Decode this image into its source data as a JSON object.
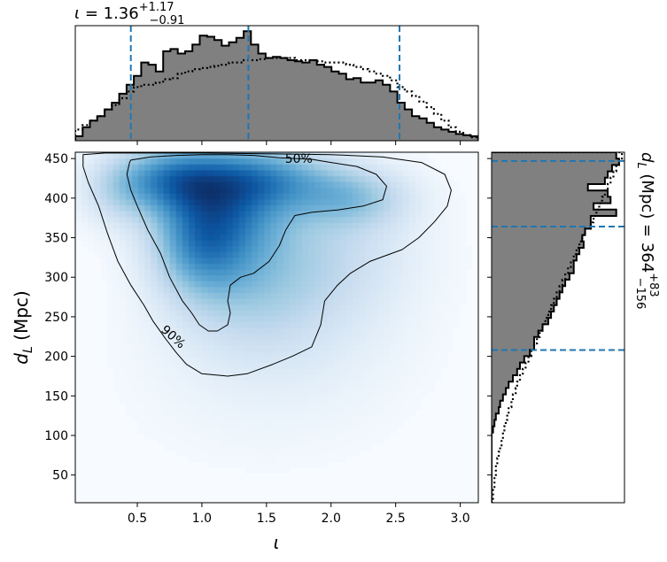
{
  "chart_data": {
    "type": "heatmap",
    "title": "",
    "colors": {
      "cmap_low": "#f7fbff",
      "cmap_high": "#08306b",
      "hist_fill": "#808080",
      "quantile_line": "#1f77b4"
    },
    "joint": {
      "xlabel": "ι",
      "ylabel": "d_L (Mpc)",
      "xlim": [
        0.02,
        3.14
      ],
      "ylim": [
        15,
        458
      ],
      "xticks": [
        0.5,
        1.0,
        1.5,
        2.0,
        2.5,
        3.0
      ],
      "xtick_labels": [
        "0.5",
        "1.0",
        "1.5",
        "2.0",
        "2.5",
        "3.0"
      ],
      "yticks": [
        50,
        100,
        150,
        200,
        250,
        300,
        350,
        400,
        450
      ],
      "ytick_labels": [
        "50",
        "100",
        "150",
        "200",
        "250",
        "300",
        "350",
        "400",
        "450"
      ],
      "density_blobs": [
        {
          "x": 0.75,
          "y": 425,
          "sx": 0.28,
          "sy": 28,
          "w": 0.85
        },
        {
          "x": 1.2,
          "y": 400,
          "sx": 0.35,
          "sy": 45,
          "w": 0.9
        },
        {
          "x": 1.0,
          "y": 345,
          "sx": 0.25,
          "sy": 45,
          "w": 0.8
        },
        {
          "x": 1.5,
          "y": 425,
          "sx": 0.4,
          "sy": 25,
          "w": 0.65
        },
        {
          "x": 2.15,
          "y": 400,
          "sx": 0.3,
          "sy": 25,
          "w": 0.5
        },
        {
          "x": 1.35,
          "y": 300,
          "sx": 0.4,
          "sy": 55,
          "w": 0.45
        },
        {
          "x": 2.0,
          "y": 330,
          "sx": 0.45,
          "sy": 60,
          "w": 0.3
        },
        {
          "x": 0.35,
          "y": 410,
          "sx": 0.2,
          "sy": 30,
          "w": 0.3
        },
        {
          "x": 1.6,
          "y": 220,
          "sx": 0.6,
          "sy": 50,
          "w": 0.12
        },
        {
          "x": 1.5,
          "y": 140,
          "sx": 0.7,
          "sy": 60,
          "w": 0.05
        }
      ],
      "contours": [
        {
          "label": "50%",
          "label_at": [
            1.75,
            450
          ],
          "points": [
            [
              0.45,
              448
            ],
            [
              0.6,
              452
            ],
            [
              0.8,
              454
            ],
            [
              1.0,
              455
            ],
            [
              1.2,
              455
            ],
            [
              1.4,
              454
            ],
            [
              1.6,
              451
            ],
            [
              1.75,
              450
            ],
            [
              1.85,
              449
            ],
            [
              2.0,
              445
            ],
            [
              2.2,
              440
            ],
            [
              2.35,
              430
            ],
            [
              2.43,
              415
            ],
            [
              2.4,
              398
            ],
            [
              2.25,
              390
            ],
            [
              2.05,
              385
            ],
            [
              1.85,
              382
            ],
            [
              1.72,
              378
            ],
            [
              1.65,
              360
            ],
            [
              1.6,
              340
            ],
            [
              1.52,
              320
            ],
            [
              1.4,
              305
            ],
            [
              1.3,
              300
            ],
            [
              1.22,
              290
            ],
            [
              1.2,
              270
            ],
            [
              1.22,
              255
            ],
            [
              1.2,
              240
            ],
            [
              1.12,
              232
            ],
            [
              1.05,
              232
            ],
            [
              0.98,
              240
            ],
            [
              0.92,
              255
            ],
            [
              0.85,
              270
            ],
            [
              0.75,
              300
            ],
            [
              0.68,
              330
            ],
            [
              0.58,
              360
            ],
            [
              0.5,
              390
            ],
            [
              0.45,
              410
            ],
            [
              0.42,
              430
            ],
            [
              0.44,
              445
            ],
            [
              0.45,
              448
            ]
          ]
        },
        {
          "label": "90%",
          "label_at": [
            0.78,
            225
          ],
          "points": [
            [
              0.08,
              455
            ],
            [
              0.25,
              457
            ],
            [
              0.6,
              457
            ],
            [
              1.0,
              457
            ],
            [
              1.5,
              456
            ],
            [
              2.0,
              455
            ],
            [
              2.4,
              452
            ],
            [
              2.7,
              445
            ],
            [
              2.88,
              430
            ],
            [
              2.93,
              410
            ],
            [
              2.9,
              390
            ],
            [
              2.8,
              370
            ],
            [
              2.68,
              350
            ],
            [
              2.55,
              335
            ],
            [
              2.3,
              320
            ],
            [
              2.15,
              305
            ],
            [
              2.05,
              290
            ],
            [
              1.95,
              270
            ],
            [
              1.92,
              240
            ],
            [
              1.85,
              212
            ],
            [
              1.7,
              200
            ],
            [
              1.55,
              190
            ],
            [
              1.35,
              178
            ],
            [
              1.2,
              175
            ],
            [
              1.0,
              178
            ],
            [
              0.88,
              190
            ],
            [
              0.8,
              205
            ],
            [
              0.72,
              222
            ],
            [
              0.62,
              245
            ],
            [
              0.55,
              265
            ],
            [
              0.45,
              290
            ],
            [
              0.35,
              320
            ],
            [
              0.27,
              355
            ],
            [
              0.2,
              390
            ],
            [
              0.12,
              420
            ],
            [
              0.08,
              440
            ],
            [
              0.08,
              455
            ]
          ]
        }
      ]
    },
    "top_histogram": {
      "label": "ι = 1.36^{+1.17}_{−0.91}",
      "median": 1.36,
      "plus": "+1.17",
      "minus": "−0.91",
      "quantiles": [
        0.45,
        1.36,
        2.53
      ],
      "bin_edges": [
        0.02,
        0.0767,
        0.1333,
        0.19,
        0.2467,
        0.3033,
        0.36,
        0.4167,
        0.4733,
        0.53,
        0.5867,
        0.6433,
        0.7,
        0.7567,
        0.8133,
        0.87,
        0.9267,
        0.9833,
        1.04,
        1.0967,
        1.1533,
        1.21,
        1.2667,
        1.3233,
        1.38,
        1.4367,
        1.4933,
        1.55,
        1.6067,
        1.6633,
        1.72,
        1.7767,
        1.8333,
        1.89,
        1.9467,
        2.0033,
        2.06,
        2.1167,
        2.1733,
        2.23,
        2.2867,
        2.3433,
        2.4,
        2.4567,
        2.5133,
        2.57,
        2.6267,
        2.6833,
        2.74,
        2.7967,
        2.8533,
        2.91,
        2.9667,
        3.0233,
        3.08,
        3.14
      ],
      "solid_counts": [
        0.04,
        0.12,
        0.18,
        0.22,
        0.28,
        0.34,
        0.42,
        0.5,
        0.58,
        0.7,
        0.68,
        0.62,
        0.8,
        0.82,
        0.78,
        0.8,
        0.86,
        0.94,
        0.93,
        0.9,
        0.85,
        0.88,
        0.92,
        0.98,
        0.86,
        0.78,
        0.74,
        0.75,
        0.74,
        0.72,
        0.71,
        0.7,
        0.72,
        0.68,
        0.66,
        0.62,
        0.6,
        0.55,
        0.56,
        0.52,
        0.52,
        0.54,
        0.5,
        0.44,
        0.34,
        0.28,
        0.22,
        0.2,
        0.16,
        0.12,
        0.1,
        0.08,
        0.06,
        0.05,
        0.04
      ],
      "dotted_counts": [
        0.1,
        0.14,
        0.18,
        0.22,
        0.28,
        0.32,
        0.38,
        0.44,
        0.48,
        0.5,
        0.5,
        0.52,
        0.55,
        0.56,
        0.6,
        0.62,
        0.64,
        0.65,
        0.66,
        0.67,
        0.68,
        0.7,
        0.7,
        0.72,
        0.72,
        0.73,
        0.74,
        0.74,
        0.74,
        0.74,
        0.72,
        0.72,
        0.72,
        0.71,
        0.7,
        0.7,
        0.7,
        0.68,
        0.66,
        0.64,
        0.62,
        0.6,
        0.58,
        0.54,
        0.48,
        0.44,
        0.4,
        0.35,
        0.3,
        0.24,
        0.18,
        0.12,
        0.08,
        0.05,
        0.03
      ]
    },
    "right_histogram": {
      "label": "d_L (Mpc) = 364^{+83}_{−156}",
      "median": 364,
      "plus": "+83",
      "minus": "−156",
      "quantiles": [
        208,
        364,
        447
      ],
      "bin_edges": [
        15,
        23.06,
        31.11,
        39.17,
        47.22,
        55.28,
        63.33,
        71.39,
        79.44,
        87.5,
        95.56,
        103.61,
        111.67,
        119.72,
        127.78,
        135.83,
        143.89,
        151.94,
        160,
        168.06,
        176.11,
        184.17,
        192.22,
        200.28,
        208.33,
        216.39,
        224.44,
        232.5,
        240.56,
        248.61,
        256.67,
        264.72,
        272.78,
        280.83,
        288.89,
        296.94,
        305,
        313.06,
        321.11,
        329.17,
        337.22,
        345.28,
        353.33,
        361.39,
        369.44,
        377.5,
        385.56,
        393.61,
        401.67,
        409.72,
        417.78,
        425.83,
        433.89,
        441.94,
        450,
        458
      ],
      "solid_counts": [
        0,
        0,
        0,
        0,
        0,
        0,
        0,
        0,
        0,
        0,
        0,
        0.01,
        0.02,
        0.03,
        0.05,
        0.06,
        0.08,
        0.1,
        0.12,
        0.15,
        0.18,
        0.2,
        0.23,
        0.27,
        0.3,
        0.3,
        0.33,
        0.36,
        0.4,
        0.42,
        0.44,
        0.46,
        0.48,
        0.5,
        0.52,
        0.55,
        0.58,
        0.58,
        0.6,
        0.62,
        0.65,
        0.64,
        0.66,
        0.7,
        0.7,
        0.88,
        0.72,
        0.84,
        0.82,
        0.68,
        0.8,
        0.82,
        0.85,
        0.9,
        0.88
      ],
      "dotted_counts": [
        0.01,
        0.01,
        0.02,
        0.02,
        0.03,
        0.03,
        0.04,
        0.05,
        0.06,
        0.07,
        0.08,
        0.09,
        0.1,
        0.11,
        0.12,
        0.14,
        0.15,
        0.17,
        0.18,
        0.2,
        0.22,
        0.24,
        0.26,
        0.28,
        0.3,
        0.32,
        0.34,
        0.36,
        0.38,
        0.4,
        0.42,
        0.44,
        0.46,
        0.48,
        0.5,
        0.52,
        0.54,
        0.56,
        0.58,
        0.6,
        0.62,
        0.64,
        0.66,
        0.7,
        0.72,
        0.74,
        0.76,
        0.78,
        0.8,
        0.82,
        0.84,
        0.86,
        0.88,
        0.9,
        0.92
      ]
    }
  }
}
